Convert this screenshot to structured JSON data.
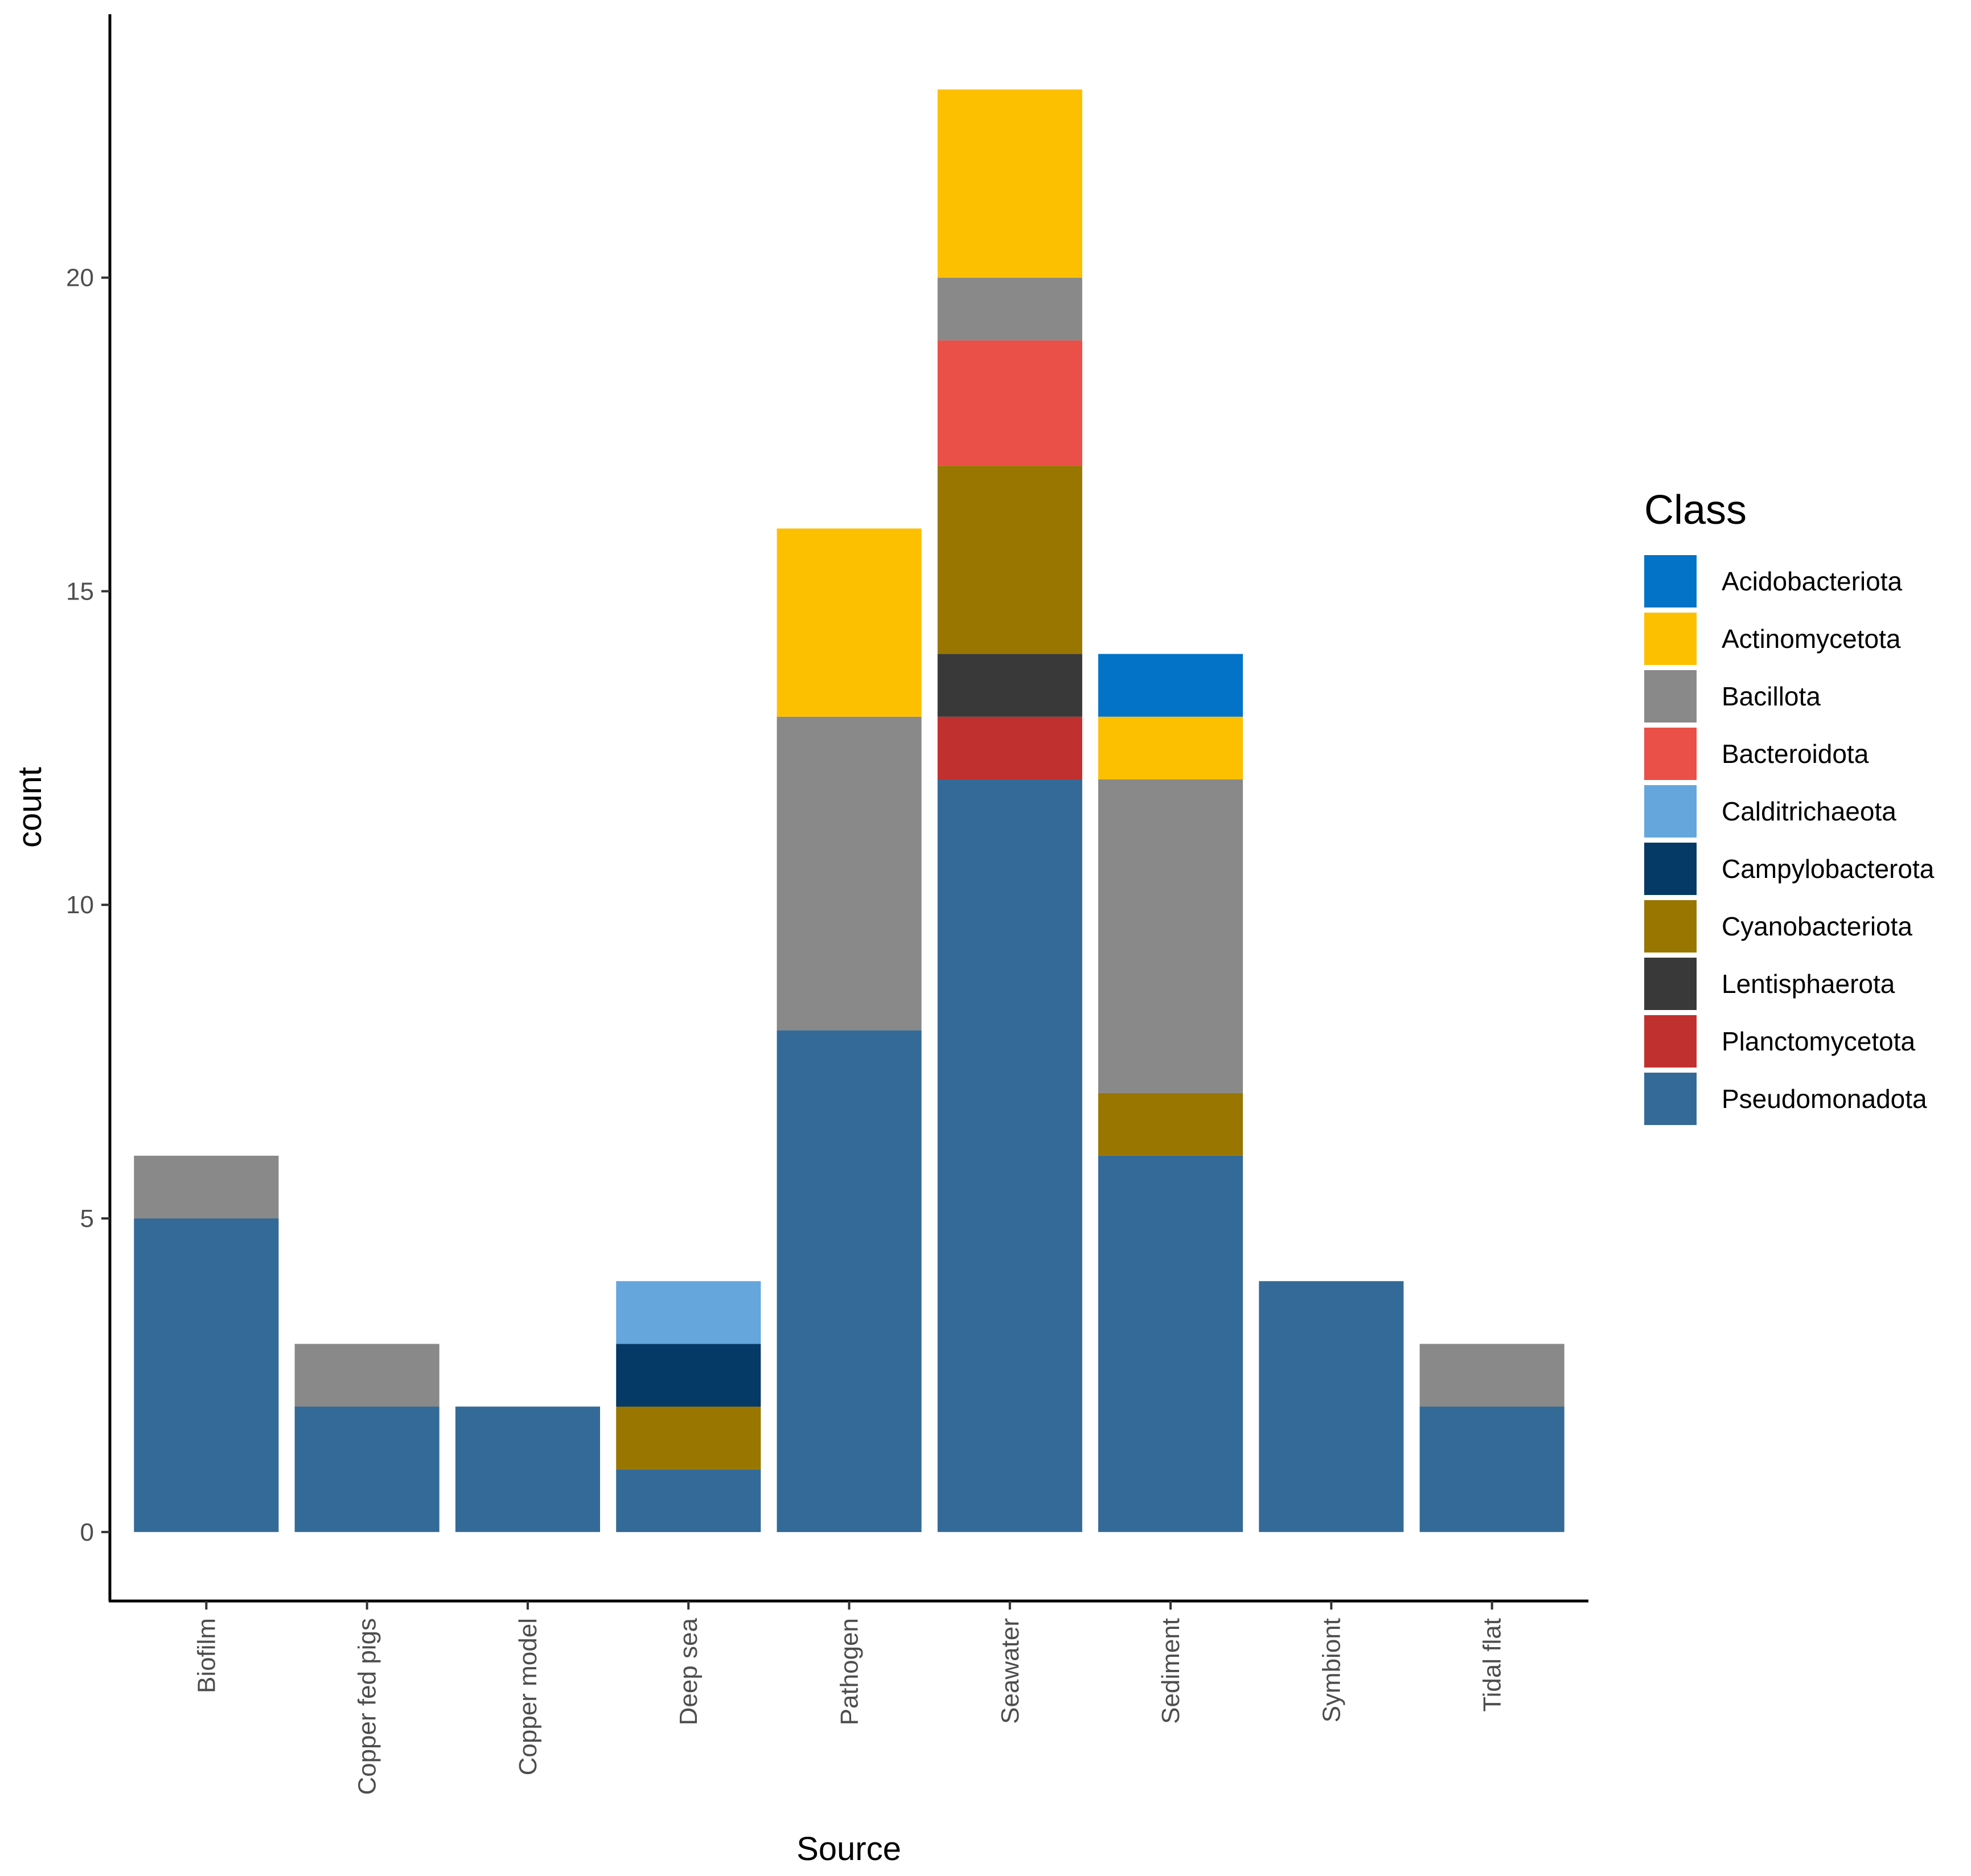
{
  "chart_data": {
    "type": "bar",
    "stacked": true,
    "title": "",
    "xlabel": "Source",
    "ylabel": "count",
    "ylim": [
      -1.1,
      24.2
    ],
    "yticks": [
      0,
      5,
      10,
      15,
      20
    ],
    "grid": false,
    "categories": [
      "Biofilm",
      "Copper fed pigs",
      "Copper model",
      "Deep sea",
      "Pathogen",
      "Seawater",
      "Sediment",
      "Symbiont",
      "Tidal flat"
    ],
    "legend": {
      "title": "Class",
      "position": "right"
    },
    "series": [
      {
        "name": "Pseudomonadota",
        "color": "#346A97",
        "values": [
          5,
          2,
          2,
          1,
          8,
          12,
          6,
          4,
          2
        ]
      },
      {
        "name": "Planctomycetota",
        "color": "#C0302F",
        "values": [
          0,
          0,
          0,
          0,
          0,
          1,
          0,
          0,
          0
        ]
      },
      {
        "name": "Lentisphaerota",
        "color": "#393939",
        "values": [
          0,
          0,
          0,
          0,
          0,
          1,
          0,
          0,
          0
        ]
      },
      {
        "name": "Cyanobacteriota",
        "color": "#987600",
        "values": [
          0,
          0,
          0,
          1,
          0,
          3,
          1,
          0,
          0
        ]
      },
      {
        "name": "Campylobacterota",
        "color": "#053966",
        "values": [
          0,
          0,
          0,
          1,
          0,
          0,
          0,
          0,
          0
        ]
      },
      {
        "name": "Calditrichaeota",
        "color": "#65A6DC",
        "values": [
          0,
          0,
          0,
          1,
          0,
          0,
          0,
          0,
          0
        ]
      },
      {
        "name": "Bacteroidota",
        "color": "#EA5048",
        "values": [
          0,
          0,
          0,
          0,
          0,
          2,
          0,
          0,
          0
        ]
      },
      {
        "name": "Bacillota",
        "color": "#898989",
        "values": [
          1,
          1,
          0,
          0,
          5,
          1,
          5,
          0,
          1
        ]
      },
      {
        "name": "Actinomycetota",
        "color": "#FDC000",
        "values": [
          0,
          0,
          0,
          0,
          3,
          3,
          1,
          0,
          0
        ]
      },
      {
        "name": "Acidobacteriota",
        "color": "#0273C7",
        "values": [
          0,
          0,
          0,
          0,
          0,
          0,
          1,
          0,
          0
        ]
      }
    ],
    "legend_order": [
      "Acidobacteriota",
      "Actinomycetota",
      "Bacillota",
      "Bacteroidota",
      "Calditrichaeota",
      "Campylobacterota",
      "Cyanobacteriota",
      "Lentisphaerota",
      "Planctomycetota",
      "Pseudomonadota"
    ]
  }
}
